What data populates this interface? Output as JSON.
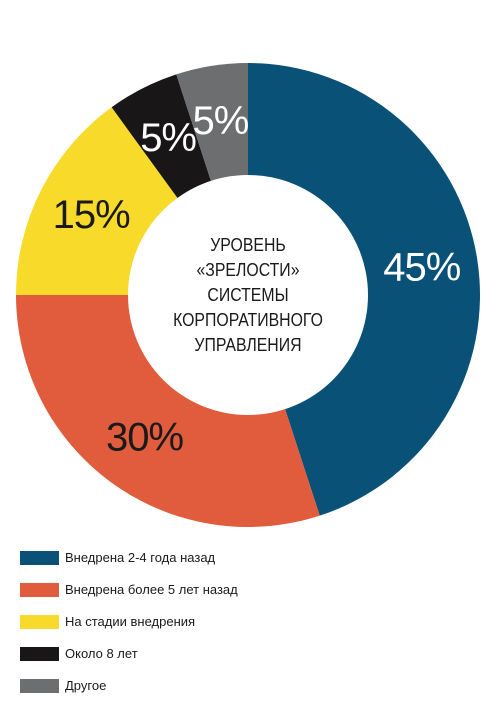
{
  "chart_data": {
    "type": "pie",
    "title": "",
    "center_label": [
      "УРОВЕНЬ",
      "«ЗРЕЛОСТИ»",
      "СИСТЕМЫ",
      "КОРПОРАТИВНОГО",
      "УПРАВЛЕНИЯ"
    ],
    "slices": [
      {
        "name": "Внедрена 2-4 года назад",
        "value": 45,
        "label": "45%",
        "color": "#0a5178",
        "text_color": "#ffffff"
      },
      {
        "name": "Внедрена более 5 лет назад",
        "value": 30,
        "label": "30%",
        "color": "#e05c3c",
        "text_color": "#1a1a1a"
      },
      {
        "name": "На стадии внедрения",
        "value": 15,
        "label": "15%",
        "color": "#f8da2a",
        "text_color": "#1a1a1a"
      },
      {
        "name": "Около 8 лет",
        "value": 5,
        "label": "5%",
        "color": "#181616",
        "text_color": "#ffffff"
      },
      {
        "name": "Другое",
        "value": 5,
        "label": "5%",
        "color": "#6c6e70",
        "text_color": "#ffffff"
      }
    ],
    "legend_position": "bottom-left"
  }
}
